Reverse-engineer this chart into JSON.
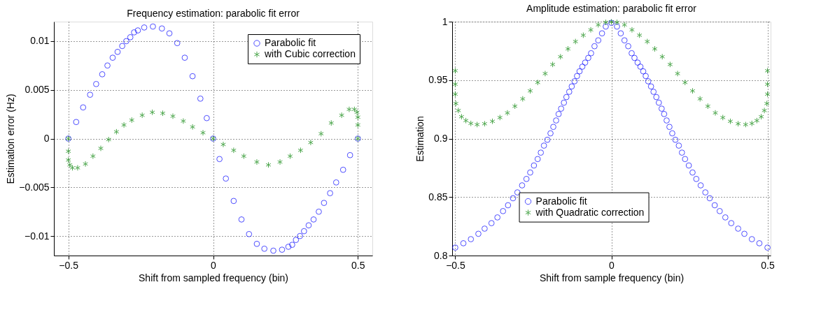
{
  "chart_data": [
    {
      "type": "scatter",
      "title": "Frequency estimation: parabolic fit error",
      "xlabel": "Shift from sampled frequency (bin)",
      "ylabel": "Estimation error (Hz)",
      "xlim": [
        -0.55,
        0.55
      ],
      "ylim": [
        -0.012,
        0.012
      ],
      "xticks": [
        -0.5,
        0,
        0.5
      ],
      "yticks": [
        -0.01,
        -0.005,
        0,
        0.005,
        0.01
      ],
      "grid": true,
      "legend": "top right",
      "series": [
        {
          "name": "Parabolic fit",
          "color": "#0000ff",
          "marker": "circle",
          "x": [
            -0.5,
            -0.473,
            -0.449,
            -0.425,
            -0.404,
            -0.383,
            -0.365,
            -0.347,
            -0.33,
            -0.314,
            -0.3,
            -0.286,
            -0.273,
            -0.26,
            -0.238,
            -0.208,
            -0.177,
            -0.151,
            -0.124,
            -0.098,
            -0.071,
            -0.044,
            -0.022,
            0,
            0.022,
            0.044,
            0.071,
            0.098,
            0.124,
            0.151,
            0.177,
            0.208,
            0.238,
            0.26,
            0.273,
            0.286,
            0.3,
            0.314,
            0.33,
            0.347,
            0.365,
            0.383,
            0.404,
            0.425,
            0.449,
            0.473,
            0.5
          ],
          "values": [
            0,
            0.0017,
            0.0032,
            0.0045,
            0.0056,
            0.0066,
            0.0075,
            0.0083,
            0.0089,
            0.0095,
            0.01,
            0.0104,
            0.0109,
            0.0111,
            0.0114,
            0.0115,
            0.0113,
            0.0108,
            0.0098,
            0.0083,
            0.0064,
            0.0041,
            0.0021,
            0,
            -0.0021,
            -0.0041,
            -0.0064,
            -0.0083,
            -0.0098,
            -0.0108,
            -0.0113,
            -0.0115,
            -0.0114,
            -0.0111,
            -0.0109,
            -0.0104,
            -0.01,
            -0.0095,
            -0.0089,
            -0.0083,
            -0.0075,
            -0.0066,
            -0.0056,
            -0.0045,
            -0.0032,
            -0.0017,
            0
          ]
        },
        {
          "name": "with Cubic correction",
          "color": "#008000",
          "marker": "cross",
          "x": [
            -0.5,
            -0.5,
            -0.5,
            -0.495,
            -0.486,
            -0.468,
            -0.441,
            -0.415,
            -0.388,
            -0.361,
            -0.334,
            -0.308,
            -0.281,
            -0.245,
            -0.21,
            -0.174,
            -0.139,
            -0.103,
            -0.071,
            -0.035,
            0,
            0.035,
            0.071,
            0.106,
            0.151,
            0.191,
            0.231,
            0.266,
            0.302,
            0.337,
            0.373,
            0.408,
            0.444,
            0.47,
            0.488,
            0.497,
            0.5,
            0.5,
            0.5
          ],
          "values": [
            0,
            -0.0013,
            -0.0022,
            -0.0027,
            -0.003,
            -0.003,
            -0.0026,
            -0.0018,
            -0.001,
            -0.0001,
            0.0007,
            0.0014,
            0.0019,
            0.0024,
            0.0027,
            0.0026,
            0.0023,
            0.0018,
            0.0012,
            0.0006,
            0,
            -0.0006,
            -0.0012,
            -0.0018,
            -0.0024,
            -0.0027,
            -0.0024,
            -0.0018,
            -0.0012,
            -0.0004,
            0.0005,
            0.0016,
            0.0024,
            0.003,
            0.003,
            0.0027,
            0.0022,
            0.0014,
            0
          ]
        }
      ]
    },
    {
      "type": "scatter",
      "title": "Amplitude estimation: parabolic fit error",
      "xlabel": "Shift from sample frequency (bin)",
      "ylabel": "Estimation",
      "xlim": [
        -0.51,
        0.51
      ],
      "ylim": [
        0.8,
        1
      ],
      "xticks": [
        -0.5,
        0,
        0.5
      ],
      "yticks": [
        0.8,
        0.85,
        0.9,
        0.95,
        1
      ],
      "grid": true,
      "legend": "bottom",
      "series": [
        {
          "name": "Parabolic fit",
          "color": "#0000ff",
          "marker": "circle",
          "x": [
            -0.5,
            -0.474,
            -0.45,
            -0.426,
            -0.406,
            -0.384,
            -0.365,
            -0.347,
            -0.331,
            -0.315,
            -0.301,
            -0.286,
            -0.272,
            -0.26,
            -0.248,
            -0.236,
            -0.226,
            -0.216,
            -0.205,
            -0.195,
            -0.186,
            -0.177,
            -0.169,
            -0.161,
            -0.152,
            -0.144,
            -0.135,
            -0.127,
            -0.118,
            -0.11,
            -0.102,
            -0.093,
            -0.084,
            -0.074,
            -0.065,
            -0.054,
            -0.042,
            -0.03,
            -0.018,
            0,
            0.018,
            0.03,
            0.042,
            0.054,
            0.065,
            0.074,
            0.084,
            0.093,
            0.102,
            0.11,
            0.118,
            0.127,
            0.135,
            0.144,
            0.152,
            0.161,
            0.169,
            0.177,
            0.186,
            0.195,
            0.205,
            0.216,
            0.226,
            0.236,
            0.248,
            0.26,
            0.272,
            0.286,
            0.301,
            0.315,
            0.331,
            0.347,
            0.365,
            0.384,
            0.406,
            0.426,
            0.45,
            0.474,
            0.5
          ],
          "values": [
            0.8068,
            0.8105,
            0.814,
            0.8186,
            0.823,
            0.8277,
            0.8326,
            0.838,
            0.843,
            0.849,
            0.854,
            0.86,
            0.8655,
            0.871,
            0.877,
            0.8825,
            0.888,
            0.894,
            0.899,
            0.9045,
            0.91,
            0.9155,
            0.921,
            0.9256,
            0.9307,
            0.9355,
            0.94,
            0.9446,
            0.949,
            0.9535,
            0.9575,
            0.9615,
            0.965,
            0.969,
            0.973,
            0.979,
            0.984,
            0.99,
            0.9958,
            0.999,
            0.9958,
            0.99,
            0.984,
            0.979,
            0.973,
            0.969,
            0.965,
            0.9615,
            0.9575,
            0.9535,
            0.949,
            0.9446,
            0.94,
            0.9355,
            0.9307,
            0.9256,
            0.921,
            0.9155,
            0.91,
            0.9045,
            0.899,
            0.894,
            0.888,
            0.8825,
            0.877,
            0.871,
            0.8655,
            0.86,
            0.854,
            0.849,
            0.843,
            0.838,
            0.8326,
            0.8277,
            0.823,
            0.8186,
            0.814,
            0.8105,
            0.8068
          ]
        },
        {
          "name": "with Quadratic correction",
          "color": "#008000",
          "marker": "cross",
          "x": [
            -0.5,
            -0.5,
            -0.5,
            -0.498,
            -0.49,
            -0.48,
            -0.466,
            -0.45,
            -0.43,
            -0.406,
            -0.381,
            -0.357,
            -0.333,
            -0.309,
            -0.284,
            -0.26,
            -0.236,
            -0.212,
            -0.188,
            -0.163,
            -0.139,
            -0.115,
            -0.09,
            -0.066,
            -0.042,
            -0.018,
            0,
            0.018,
            0.042,
            0.066,
            0.09,
            0.115,
            0.139,
            0.163,
            0.188,
            0.212,
            0.236,
            0.26,
            0.284,
            0.309,
            0.333,
            0.357,
            0.381,
            0.406,
            0.43,
            0.45,
            0.466,
            0.48,
            0.49,
            0.498,
            0.5,
            0.5,
            0.5
          ],
          "values": [
            0.958,
            0.9465,
            0.938,
            0.93,
            0.924,
            0.9187,
            0.9154,
            0.913,
            0.912,
            0.9127,
            0.9148,
            0.918,
            0.922,
            0.9277,
            0.934,
            0.9408,
            0.948,
            0.9556,
            0.9634,
            0.97,
            0.9767,
            0.983,
            0.9884,
            0.993,
            0.9973,
            0.9994,
            0.9998,
            0.9994,
            0.9973,
            0.993,
            0.9884,
            0.983,
            0.9767,
            0.97,
            0.9634,
            0.9556,
            0.948,
            0.9408,
            0.934,
            0.9277,
            0.922,
            0.918,
            0.9148,
            0.9127,
            0.912,
            0.913,
            0.9154,
            0.9187,
            0.924,
            0.93,
            0.938,
            0.9465,
            0.958
          ]
        }
      ]
    }
  ]
}
